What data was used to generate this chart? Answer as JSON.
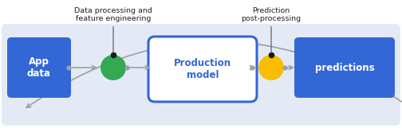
{
  "bg_color": "#ffffff",
  "panel_color": "#e4eaf5",
  "box_blue_color": "#3367d6",
  "box_blue_text_color": "#ffffff",
  "box_outline_color": "#3367d6",
  "box_outline_fill": "#ffffff",
  "arrow_color": "#9aa0a6",
  "dot_black": "#1a1a1a",
  "dot_green": "#34a853",
  "dot_orange": "#fbbc04",
  "label_color": "#202124",
  "ann_line_color": "#5f6368",
  "app_data_label": "App\ndata",
  "prod_model_label": "Production\nmodel",
  "predictions_label": "predictions",
  "ann1_label": "Data processing and\nfeature engineering",
  "ann2_label": "Prediction\npost-processing",
  "fig_w": 5.04,
  "fig_h": 1.61,
  "dpi": 100
}
